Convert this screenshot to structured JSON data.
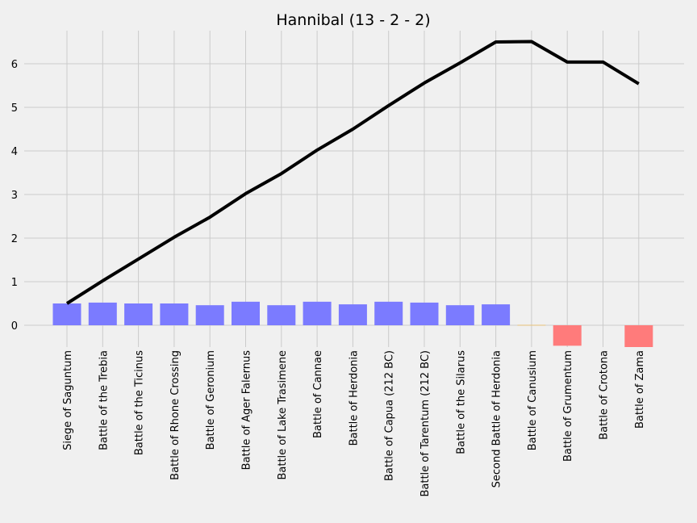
{
  "chart_data": {
    "type": "bar",
    "title": "Hannibal (13 - 2 - 2)",
    "xlabel": "",
    "ylabel": "",
    "categories": [
      "Siege of Saguntum",
      "Battle of the Trebia",
      "Battle of the Ticinus",
      "Battle of Rhone Crossing",
      "Battle of Geronium",
      "Battle of Ager Falernus",
      "Battle of Lake Trasimene",
      "Battle of Cannae",
      "Battle of Herdonia",
      "Battle of Capua (212 BC)",
      "Battle of Tarentum (212 BC)",
      "Battle of the Silarus",
      "Second Battle of Herdonia",
      "Battle of Canusium",
      "Battle of Grumentum",
      "Battle of Crotona",
      "Battle of Zama"
    ],
    "series": [
      {
        "type": "bar",
        "values": [
          0.5,
          0.52,
          0.5,
          0.5,
          0.46,
          0.54,
          0.46,
          0.54,
          0.48,
          0.54,
          0.52,
          0.46,
          0.48,
          0.01,
          -0.47,
          0.0,
          -0.5
        ],
        "colors": [
          "#7b7bff",
          "#7b7bff",
          "#7b7bff",
          "#7b7bff",
          "#7b7bff",
          "#7b7bff",
          "#7b7bff",
          "#7b7bff",
          "#7b7bff",
          "#7b7bff",
          "#7b7bff",
          "#7b7bff",
          "#7b7bff",
          "#e8c27a",
          "#ff7b7b",
          "#e8c27a",
          "#ff7b7b"
        ]
      },
      {
        "type": "line",
        "color": "#000000",
        "values": [
          0.5,
          1.02,
          1.52,
          2.02,
          2.48,
          3.02,
          3.48,
          4.02,
          4.5,
          5.04,
          5.56,
          6.02,
          6.5,
          6.51,
          6.04,
          6.04,
          5.54
        ]
      }
    ],
    "yticks": [
      0,
      1,
      2,
      3,
      4,
      5,
      6
    ],
    "ylim": [
      -0.5,
      6.8
    ],
    "grid": true
  }
}
